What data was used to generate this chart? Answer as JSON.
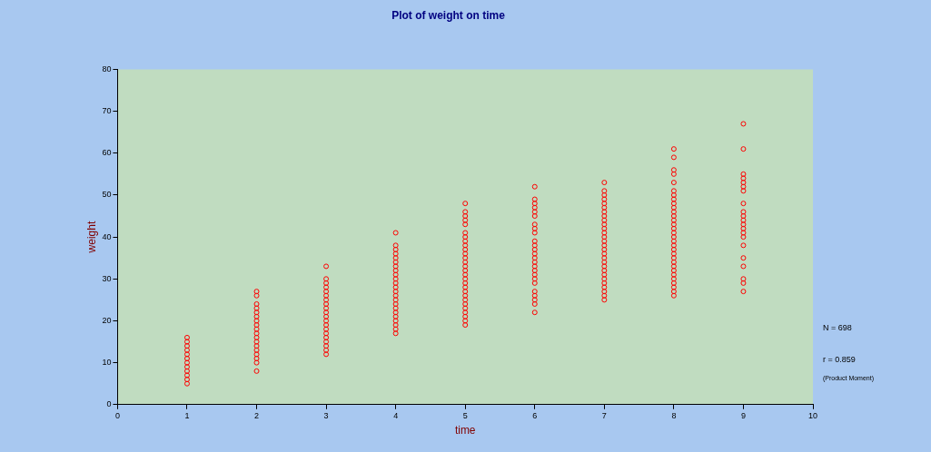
{
  "chart_data": {
    "type": "scatter",
    "title": "Plot of weight on time",
    "xlabel": "time",
    "ylabel": "weight",
    "xlim": [
      0,
      10
    ],
    "xticks": [
      0,
      1,
      2,
      3,
      4,
      5,
      6,
      7,
      8,
      9,
      10
    ],
    "ylim": [
      0,
      80
    ],
    "yticks": [
      0,
      10,
      20,
      30,
      40,
      50,
      60,
      70,
      80
    ],
    "grid": false,
    "legend": false,
    "marker": "circle",
    "annotations": [
      "N = 698",
      "r = 0.859",
      "(Product Moment)"
    ],
    "series": [
      {
        "color": "#ff0000",
        "x": [
          1,
          1,
          1,
          1,
          1,
          1,
          1,
          1,
          1,
          1,
          1,
          1,
          2,
          2,
          2,
          2,
          2,
          2,
          2,
          2,
          2,
          2,
          2,
          2,
          2,
          2,
          2,
          2,
          2,
          2,
          3,
          3,
          3,
          3,
          3,
          3,
          3,
          3,
          3,
          3,
          3,
          3,
          3,
          3,
          3,
          3,
          3,
          3,
          3,
          3,
          4,
          4,
          4,
          4,
          4,
          4,
          4,
          4,
          4,
          4,
          4,
          4,
          4,
          4,
          4,
          4,
          4,
          4,
          4,
          4,
          4,
          4,
          4,
          5,
          5,
          5,
          5,
          5,
          5,
          5,
          5,
          5,
          5,
          5,
          5,
          5,
          5,
          5,
          5,
          5,
          5,
          5,
          5,
          5,
          5,
          5,
          5,
          5,
          5,
          5,
          5,
          6,
          6,
          6,
          6,
          6,
          6,
          6,
          6,
          6,
          6,
          6,
          6,
          6,
          6,
          6,
          6,
          6,
          6,
          6,
          6,
          6,
          6,
          6,
          6,
          6,
          7,
          7,
          7,
          7,
          7,
          7,
          7,
          7,
          7,
          7,
          7,
          7,
          7,
          7,
          7,
          7,
          7,
          7,
          7,
          7,
          7,
          7,
          7,
          7,
          7,
          7,
          7,
          7,
          8,
          8,
          8,
          8,
          8,
          8,
          8,
          8,
          8,
          8,
          8,
          8,
          8,
          8,
          8,
          8,
          8,
          8,
          8,
          8,
          8,
          8,
          8,
          8,
          8,
          8,
          8,
          8,
          8,
          8,
          8,
          9,
          9,
          9,
          9,
          9,
          9,
          9,
          9,
          9,
          9,
          9,
          9,
          9,
          9,
          9,
          9,
          9,
          9,
          9,
          9,
          9
        ],
        "values": [
          5,
          6,
          7,
          8,
          9,
          10,
          11,
          12,
          13,
          14,
          15,
          16,
          8,
          10,
          11,
          12,
          13,
          14,
          15,
          16,
          17,
          18,
          19,
          20,
          21,
          22,
          23,
          24,
          26,
          27,
          12,
          13,
          14,
          15,
          16,
          17,
          18,
          19,
          20,
          21,
          22,
          23,
          24,
          25,
          26,
          27,
          28,
          29,
          30,
          33,
          17,
          18,
          19,
          20,
          21,
          22,
          23,
          24,
          25,
          26,
          27,
          28,
          29,
          30,
          31,
          32,
          33,
          34,
          35,
          36,
          37,
          38,
          41,
          19,
          20,
          21,
          22,
          23,
          24,
          25,
          26,
          27,
          28,
          29,
          30,
          31,
          32,
          33,
          34,
          35,
          36,
          37,
          38,
          39,
          40,
          41,
          43,
          44,
          45,
          46,
          48,
          22,
          24,
          25,
          26,
          27,
          29,
          30,
          31,
          32,
          33,
          34,
          35,
          36,
          37,
          38,
          39,
          41,
          42,
          43,
          45,
          46,
          47,
          48,
          49,
          52,
          25,
          26,
          27,
          28,
          29,
          30,
          31,
          32,
          33,
          34,
          35,
          36,
          37,
          38,
          39,
          40,
          41,
          42,
          43,
          44,
          45,
          46,
          47,
          48,
          49,
          50,
          51,
          53,
          26,
          27,
          28,
          29,
          30,
          31,
          32,
          33,
          34,
          35,
          36,
          37,
          38,
          39,
          40,
          41,
          42,
          43,
          44,
          45,
          46,
          47,
          48,
          49,
          50,
          51,
          53,
          55,
          56,
          59,
          61,
          27,
          29,
          30,
          33,
          35,
          38,
          40,
          41,
          42,
          43,
          44,
          45,
          46,
          48,
          51,
          52,
          53,
          54,
          55,
          61,
          67
        ]
      }
    ]
  }
}
